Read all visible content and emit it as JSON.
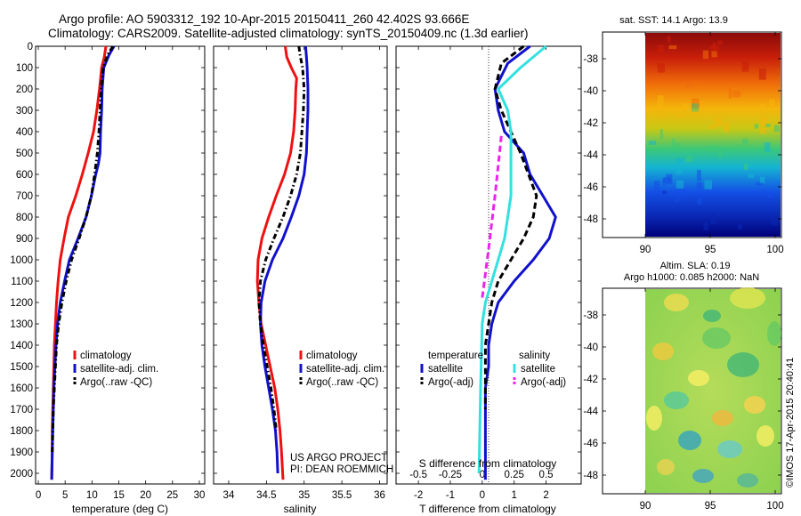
{
  "header": {
    "title": "Argo profile: AO 5903312_192 10-Apr-2015 20150411_260 42.402S 93.666E",
    "subtitle": "Climatology: CARS2009. Satellite-adjusted climatology: synTS_20150409.nc (1.3d earlier)"
  },
  "panels": {
    "temperature": {
      "xlabel": "temperature (deg C)",
      "legend": [
        {
          "label": "climatology",
          "color": "#ee1111",
          "dash": "solid"
        },
        {
          "label": "satellite-adj. clim.",
          "color": "#1111cc",
          "dash": "solid"
        },
        {
          "label": "Argo(..raw -QC)",
          "color": "#000000",
          "dash": "dashdot"
        }
      ]
    },
    "salinity": {
      "xlabel": "salinity",
      "project": "US ARGO PROJECT",
      "pi": "PI: DEAN ROEMMICH",
      "legend": [
        {
          "label": "climatology",
          "color": "#ee1111",
          "dash": "solid"
        },
        {
          "label": "satellite-adj. clim.",
          "color": "#1111cc",
          "dash": "solid"
        },
        {
          "label": "Argo(..raw -QC)",
          "color": "#000000",
          "dash": "dashdot"
        }
      ]
    },
    "difference": {
      "xlabel": "T difference from climatology",
      "s_label": "S difference from climatology",
      "legend_headers": [
        "temperature",
        "salinity"
      ],
      "legend": [
        {
          "label": "satellite",
          "color": "#1111cc",
          "dash": "solid",
          "column": 0
        },
        {
          "label": "Argo(-adj)",
          "color": "#000000",
          "dash": "dashed",
          "column": 0
        },
        {
          "label": "satellite",
          "color": "#33e0e0",
          "dash": "solid",
          "column": 1
        },
        {
          "label": "Argo(-adj)",
          "color": "#ee22ee",
          "dash": "dashed",
          "column": 1
        }
      ]
    }
  },
  "maps": {
    "sst": {
      "title": "sat. SST: 14.1  Argo: 13.9",
      "yticks": [
        "-38",
        "-40",
        "-42",
        "-44",
        "-46",
        "-48"
      ],
      "xticks": [
        "90",
        "95",
        "100"
      ]
    },
    "sla": {
      "title_line1": "Altim. SLA: 0.19",
      "title_line2": "Argo h1000: 0.085  h2000: NaN",
      "yticks": [
        "-38",
        "-40",
        "-42",
        "-44",
        "-46",
        "-48"
      ],
      "xticks": [
        "90",
        "95",
        "100"
      ]
    }
  },
  "footer": {
    "credit": "©IMOS 17-Apr-2015 20:40:41"
  },
  "chart_data": [
    {
      "type": "line",
      "xlabel": "temperature (deg C)",
      "ylabel": "",
      "xlim": [
        -0.5,
        31
      ],
      "ylim": [
        2050,
        0
      ],
      "xticks": [
        0,
        5,
        10,
        15,
        20,
        25,
        30
      ],
      "yticks": [
        0,
        100,
        200,
        300,
        400,
        500,
        600,
        700,
        800,
        900,
        1000,
        1100,
        1200,
        1300,
        1400,
        1500,
        1600,
        1700,
        1800,
        1900,
        2000
      ],
      "series": [
        {
          "name": "climatology",
          "color": "#ee1111",
          "dash": "solid",
          "x": [
            12.6,
            12.3,
            11.8,
            11.4,
            10.9,
            10.3,
            9.3,
            8.2,
            7.0,
            5.6,
            4.8,
            4.1,
            3.7,
            3.4,
            3.2,
            3.0,
            2.9,
            2.8,
            2.7,
            2.6,
            2.6,
            2.5
          ],
          "y": [
            0,
            50,
            100,
            200,
            300,
            400,
            500,
            600,
            700,
            800,
            900,
            1000,
            1100,
            1200,
            1300,
            1400,
            1500,
            1600,
            1700,
            1800,
            1900,
            2030
          ]
        },
        {
          "name": "satellite-adj. clim.",
          "color": "#1111cc",
          "dash": "solid",
          "x": [
            14.1,
            13.2,
            12.2,
            11.9,
            11.8,
            11.6,
            11.5,
            11.2,
            10.7,
            9.9,
            8.9,
            7.4,
            5.8,
            4.9,
            4.1,
            3.6,
            3.3,
            3.1,
            2.9,
            2.8,
            2.7,
            2.6,
            2.5
          ],
          "y": [
            0,
            40,
            100,
            200,
            300,
            400,
            500,
            550,
            600,
            700,
            800,
            900,
            1000,
            1100,
            1200,
            1300,
            1400,
            1500,
            1600,
            1700,
            1800,
            1900,
            2030
          ]
        },
        {
          "name": "Argo(..raw -QC)",
          "color": "#000000",
          "dash": "dashdot",
          "x": [
            13.9,
            12.9,
            12.1,
            11.7,
            11.5,
            11.3,
            11.0,
            10.5,
            9.9,
            8.9,
            7.6,
            6.2,
            5.2,
            4.4,
            3.8,
            3.4,
            3.2,
            3.0,
            2.8,
            2.7,
            2.6
          ],
          "y": [
            0,
            40,
            100,
            200,
            300,
            400,
            500,
            600,
            700,
            800,
            900,
            1000,
            1100,
            1200,
            1300,
            1400,
            1500,
            1600,
            1700,
            1800,
            1900
          ]
        }
      ]
    },
    {
      "type": "line",
      "xlabel": "salinity",
      "ylabel": "",
      "xlim": [
        33.8,
        36.1
      ],
      "ylim": [
        2050,
        0
      ],
      "xticks": [
        34,
        34.5,
        35,
        35.5,
        36
      ],
      "series": [
        {
          "name": "climatology",
          "color": "#ee1111",
          "dash": "solid",
          "x": [
            34.75,
            34.77,
            34.83,
            34.9,
            34.89,
            34.88,
            34.86,
            34.82,
            34.74,
            34.63,
            34.53,
            34.44,
            34.39,
            34.38,
            34.4,
            34.43,
            34.49,
            34.55,
            34.61,
            34.65,
            34.68,
            34.7,
            34.72
          ],
          "y": [
            0,
            50,
            100,
            150,
            200,
            300,
            400,
            500,
            600,
            700,
            800,
            900,
            1000,
            1100,
            1200,
            1300,
            1400,
            1500,
            1600,
            1700,
            1800,
            1900,
            2030
          ]
        },
        {
          "name": "satellite-adj. clim.",
          "color": "#1111cc",
          "dash": "solid",
          "x": [
            35.02,
            35.03,
            35.04,
            35.05,
            35.05,
            35.04,
            35.03,
            35.0,
            34.93,
            34.83,
            34.72,
            34.58,
            34.48,
            34.43,
            34.42,
            34.44,
            34.48,
            34.53,
            34.58,
            34.62,
            34.64,
            34.65
          ],
          "y": [
            0,
            50,
            100,
            200,
            300,
            400,
            500,
            600,
            700,
            800,
            900,
            1000,
            1100,
            1200,
            1300,
            1400,
            1500,
            1600,
            1700,
            1800,
            1900,
            2000
          ]
        },
        {
          "name": "Argo(..raw -QC)",
          "color": "#000000",
          "dash": "dashdot",
          "x": [
            34.93,
            34.95,
            34.98,
            35.0,
            34.99,
            34.97,
            34.95,
            34.9,
            34.82,
            34.72,
            34.6,
            34.49,
            34.42,
            34.4,
            34.42,
            34.46,
            34.51,
            34.56,
            34.6,
            34.63
          ],
          "y": [
            0,
            50,
            100,
            200,
            300,
            400,
            500,
            600,
            700,
            800,
            900,
            1000,
            1100,
            1200,
            1300,
            1400,
            1500,
            1600,
            1700,
            1800
          ]
        }
      ]
    },
    {
      "type": "line",
      "xlabel": "T difference from climatology",
      "ylabel": "",
      "xlim": [
        -2.7,
        3.1
      ],
      "ylim": [
        2050,
        0
      ],
      "xticks": [
        -2,
        -1,
        0,
        1,
        2
      ],
      "s_axis": {
        "label": "S difference from climatology",
        "ticks": [
          -0.5,
          -0.25,
          0,
          0.25,
          0.5
        ],
        "tick_labels": [
          "-0.5",
          "-0.25",
          "0",
          "0.25",
          "0.5"
        ],
        "scale_vs_T": 4
      },
      "series": [
        {
          "name": "temperature satellite",
          "color": "#1111cc",
          "dash": "solid",
          "x": [
            1.5,
            0.8,
            0.4,
            0.5,
            0.7,
            1.3,
            1.5,
            1.9,
            2.3,
            2.1,
            1.6,
            1.0,
            0.5,
            0.3,
            0.2,
            0.2,
            0.1,
            0.1,
            0.1,
            0.1
          ],
          "y": [
            0,
            80,
            200,
            300,
            400,
            500,
            600,
            700,
            800,
            900,
            1000,
            1100,
            1200,
            1300,
            1400,
            1500,
            1600,
            1700,
            1900,
            2030
          ]
        },
        {
          "name": "temperature Argo(-adj)",
          "color": "#000000",
          "dash": "dashed",
          "x": [
            1.3,
            0.6,
            0.4,
            0.6,
            0.9,
            1.2,
            1.7,
            1.6,
            1.3,
            0.9,
            0.5,
            0.3,
            0.2,
            0.1,
            0.1,
            0.1,
            0.1
          ],
          "y": [
            0,
            80,
            200,
            300,
            400,
            500,
            700,
            800,
            900,
            1000,
            1100,
            1200,
            1300,
            1400,
            1500,
            1600,
            1700
          ]
        },
        {
          "name": "salinity satellite",
          "color": "#33e0e0",
          "dash": "solid",
          "x": [
            2.0,
            1.2,
            0.5,
            0.8,
            0.9,
            0.9,
            0.9,
            0.8,
            0.7,
            0.5,
            0.3,
            0.1,
            0.0,
            -0.05,
            -0.1
          ],
          "y": [
            0,
            100,
            200,
            300,
            400,
            500,
            700,
            800,
            900,
            1000,
            1100,
            1200,
            1300,
            1600,
            2000
          ]
        },
        {
          "name": "salinity Argo(-adj)",
          "color": "#ee22ee",
          "dash": "dashed",
          "x": [
            0.6,
            0.4,
            0.2,
            0.0
          ],
          "y": [
            420,
            700,
            950,
            1180
          ]
        }
      ]
    }
  ]
}
